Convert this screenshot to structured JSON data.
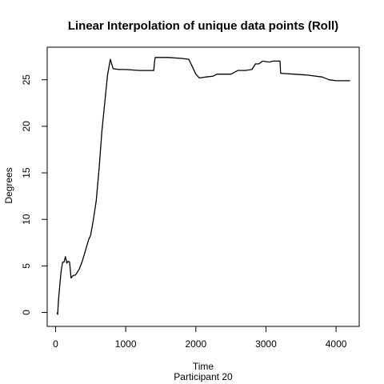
{
  "chart_data": {
    "type": "line",
    "title": "Linear Interpolation of unique data points (Roll)",
    "xlabel": "Time",
    "subtitle": "Participant  20",
    "ylabel": "Degrees",
    "xlim": [
      -120,
      4330
    ],
    "ylim": [
      -1.5,
      28.5
    ],
    "x_ticks": [
      0,
      1000,
      2000,
      3000,
      4000
    ],
    "y_ticks": [
      0,
      5,
      10,
      15,
      20,
      25
    ],
    "x_tick_labels": [
      "0",
      "1000",
      "2000",
      "3000",
      "4000"
    ],
    "y_tick_labels": [
      "0",
      "5",
      "10",
      "15",
      "20",
      "25"
    ],
    "grid": false,
    "series": [
      {
        "color": "#000000",
        "points": [
          [
            20,
            0.0
          ],
          [
            30,
            -0.2
          ],
          [
            40,
            1.2
          ],
          [
            60,
            3.0
          ],
          [
            80,
            4.5
          ],
          [
            100,
            5.4
          ],
          [
            120,
            5.4
          ],
          [
            140,
            6.0
          ],
          [
            160,
            5.3
          ],
          [
            180,
            5.5
          ],
          [
            200,
            5.4
          ],
          [
            220,
            3.7
          ],
          [
            240,
            3.9
          ],
          [
            260,
            4.0
          ],
          [
            280,
            4.0
          ],
          [
            300,
            4.2
          ],
          [
            340,
            4.7
          ],
          [
            380,
            5.5
          ],
          [
            420,
            6.5
          ],
          [
            470,
            7.8
          ],
          [
            500,
            8.3
          ],
          [
            540,
            10.0
          ],
          [
            580,
            12.0
          ],
          [
            620,
            15.5
          ],
          [
            660,
            19.5
          ],
          [
            700,
            22.5
          ],
          [
            740,
            25.5
          ],
          [
            780,
            27.2
          ],
          [
            820,
            26.2
          ],
          [
            900,
            26.1
          ],
          [
            1000,
            26.1
          ],
          [
            1200,
            26.0
          ],
          [
            1400,
            26.0
          ],
          [
            1410,
            26.9
          ],
          [
            1420,
            27.4
          ],
          [
            1600,
            27.4
          ],
          [
            1800,
            27.3
          ],
          [
            1900,
            27.2
          ],
          [
            2000,
            25.6
          ],
          [
            2050,
            25.2
          ],
          [
            2150,
            25.3
          ],
          [
            2250,
            25.4
          ],
          [
            2300,
            25.6
          ],
          [
            2400,
            25.6
          ],
          [
            2500,
            25.6
          ],
          [
            2600,
            26.0
          ],
          [
            2700,
            26.0
          ],
          [
            2800,
            26.1
          ],
          [
            2850,
            26.7
          ],
          [
            2900,
            26.7
          ],
          [
            2950,
            27.0
          ],
          [
            3050,
            26.9
          ],
          [
            3100,
            27.0
          ],
          [
            3200,
            27.0
          ],
          [
            3210,
            25.7
          ],
          [
            3400,
            25.6
          ],
          [
            3600,
            25.5
          ],
          [
            3700,
            25.4
          ],
          [
            3800,
            25.3
          ],
          [
            3900,
            25.0
          ],
          [
            4000,
            24.9
          ],
          [
            4200,
            24.9
          ]
        ]
      }
    ]
  }
}
